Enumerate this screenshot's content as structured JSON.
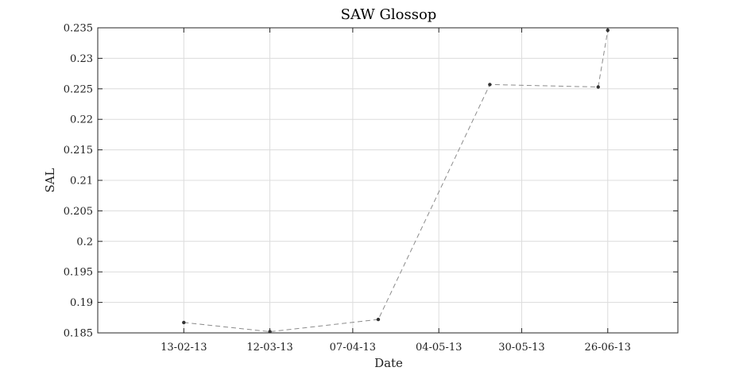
{
  "chart_data": {
    "type": "line",
    "title": "SAW Glossop",
    "xlabel": "Date",
    "ylabel": "SAL",
    "x_tick_labels": [
      "13-02-13",
      "12-03-13",
      "07-04-13",
      "04-05-13",
      "30-05-13",
      "26-06-13"
    ],
    "xlim": [
      "2013-01-17",
      "2013-07-18"
    ],
    "ylim": [
      0.185,
      0.235
    ],
    "y_tick_labels": [
      "0.185",
      "0.19",
      "0.195",
      "0.2",
      "0.205",
      "0.21",
      "0.215",
      "0.22",
      "0.225",
      "0.23",
      "0.235"
    ],
    "grid": true,
    "series": [
      {
        "x": [
          "2013-02-13",
          "2013-03-12",
          "2013-04-15",
          "2013-05-20",
          "2013-06-23",
          "2013-06-26"
        ],
        "values": [
          0.1867,
          0.1852,
          0.1872,
          0.2257,
          0.2253,
          0.2346
        ],
        "line_color": "#8c8c8c",
        "marker_color": "#333333"
      }
    ]
  }
}
